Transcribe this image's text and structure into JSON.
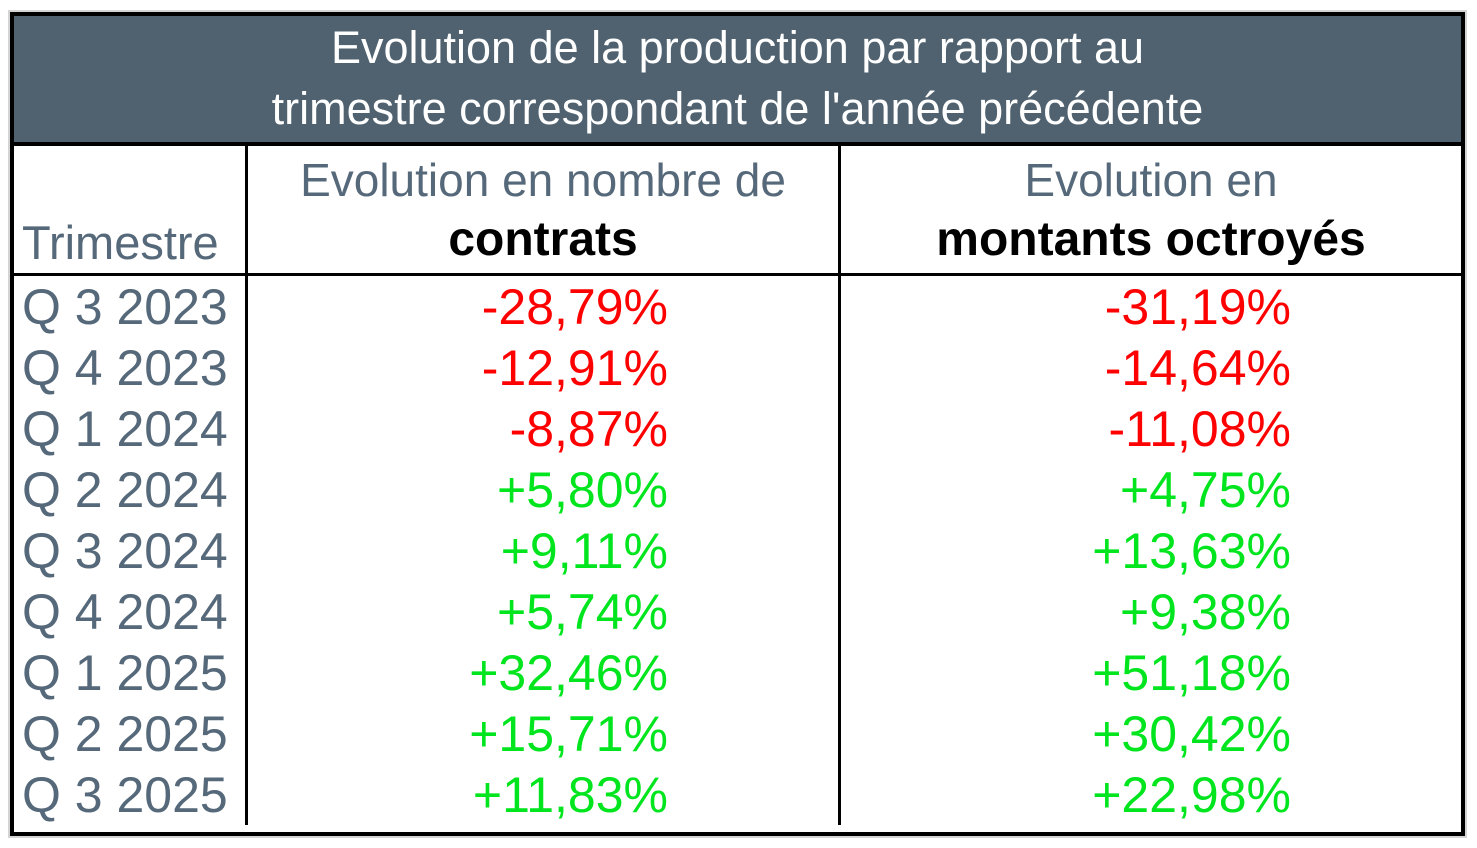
{
  "title": {
    "line1": "Evolution de la production par rapport au",
    "line2": "trimestre correspondant de l'année précédente"
  },
  "headers": {
    "trimestre": "Trimestre",
    "col2_line1": "Evolution en nombre de",
    "col2_line2": "contrats",
    "col3_line1": "Evolution en",
    "col3_line2": "montants octroyés"
  },
  "rows": [
    {
      "trimestre": "Q 3 2023",
      "contrats": "-28,79%",
      "montants": "-31,19%"
    },
    {
      "trimestre": "Q 4 2023",
      "contrats": "-12,91%",
      "montants": "-14,64%"
    },
    {
      "trimestre": "Q 1 2024",
      "contrats": "-8,87%",
      "montants": "-11,08%"
    },
    {
      "trimestre": "Q 2 2024",
      "contrats": "+5,80%",
      "montants": "+4,75%"
    },
    {
      "trimestre": "Q 3 2024",
      "contrats": "+9,11%",
      "montants": "+13,63%"
    },
    {
      "trimestre": "Q 4 2024",
      "contrats": "+5,74%",
      "montants": "+9,38%"
    },
    {
      "trimestre": "Q 1 2025",
      "contrats": "+32,46%",
      "montants": "+51,18%"
    },
    {
      "trimestre": "Q 2 2025",
      "contrats": "+15,71%",
      "montants": "+30,42%"
    },
    {
      "trimestre": "Q 3 2025",
      "contrats": "+11,83%",
      "montants": "+22,98%"
    }
  ],
  "colors": {
    "titlebg": "#50626f",
    "slate": "#56697a",
    "negative": "#ff0000",
    "positive": "#00e51e",
    "border": "#000000"
  },
  "chart_data": {
    "type": "table",
    "title": "Evolution de la production par rapport au trimestre correspondant de l'année précédente",
    "columns": [
      "Trimestre",
      "Evolution en nombre de contrats",
      "Evolution en montants octroyés"
    ],
    "categories": [
      "Q 3 2023",
      "Q 4 2023",
      "Q 1 2024",
      "Q 2 2024",
      "Q 3 2024",
      "Q 4 2024",
      "Q 1 2025",
      "Q 2 2025",
      "Q 3 2025"
    ],
    "series": [
      {
        "name": "Evolution en nombre de contrats (%)",
        "values": [
          -28.79,
          -12.91,
          -8.87,
          5.8,
          9.11,
          5.74,
          32.46,
          15.71,
          11.83
        ]
      },
      {
        "name": "Evolution en montants octroyés (%)",
        "values": [
          -31.19,
          -14.64,
          -11.08,
          4.75,
          13.63,
          9.38,
          51.18,
          30.42,
          22.98
        ]
      }
    ],
    "value_format": "signed percentage, comma decimal separator, negatives red, positives green"
  }
}
